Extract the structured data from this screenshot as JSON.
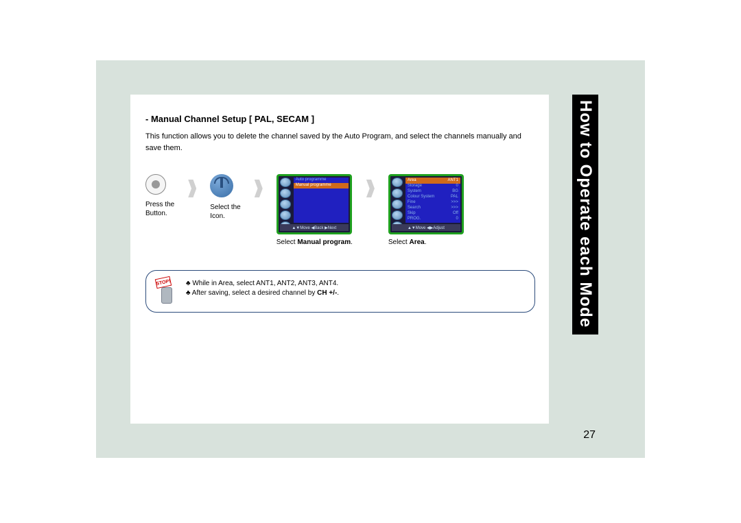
{
  "page": {
    "number": "27",
    "sidebar_title": "How to Operate each Mode"
  },
  "section": {
    "title": "- Manual Channel Setup [ PAL, SECAM ]",
    "description": "This function allows you to delete the channel saved by the Auto Program, and select the channels manually and save them."
  },
  "steps": {
    "step1_label_line1": "Press the",
    "step1_label_line2": "Button.",
    "step2_label_line1": "Select the",
    "step2_label_line2": "Icon.",
    "step3_caption_prefix": "Select ",
    "step3_caption_bold": "Manual program",
    "step3_caption_suffix": ".",
    "step4_caption_prefix": "Select ",
    "step4_caption_bold": "Area",
    "step4_caption_suffix": "."
  },
  "screen3": {
    "rows": [
      {
        "label": "Auto programme",
        "highlight": false
      },
      {
        "label": "Manual programme",
        "highlight": true
      }
    ],
    "footer": "▲▼Move ◀Back ▶Next"
  },
  "screen4": {
    "header_left": "Area",
    "header_right": "ANT1",
    "rows": [
      {
        "label": "Storage",
        "value": "0"
      },
      {
        "label": "System",
        "value": "BG"
      },
      {
        "label": "Colour System",
        "value": "PAL"
      },
      {
        "label": "Fine",
        "value": ">>>"
      },
      {
        "label": "Search",
        "value": ">>>"
      },
      {
        "label": "Skip",
        "value": "Off"
      },
      {
        "label": "PROG.",
        "value": "0"
      }
    ],
    "footer": "▲▼Move ◀▶Adjust"
  },
  "note": {
    "stop_label": "STOP!",
    "line1_prefix": "♣ While in Area, select ANT1, ANT2, ANT3, ANT4.",
    "line2_prefix": "♣ After saving, select a desired channel by ",
    "line2_bold": "CH +/-",
    "line2_suffix": "."
  },
  "colors": {
    "page_bg": "#d8e2dc",
    "screen_border": "#1fa01f",
    "screen_bg": "#2020c0",
    "highlight": "#d06a1a",
    "note_border": "#2a4a7a"
  }
}
